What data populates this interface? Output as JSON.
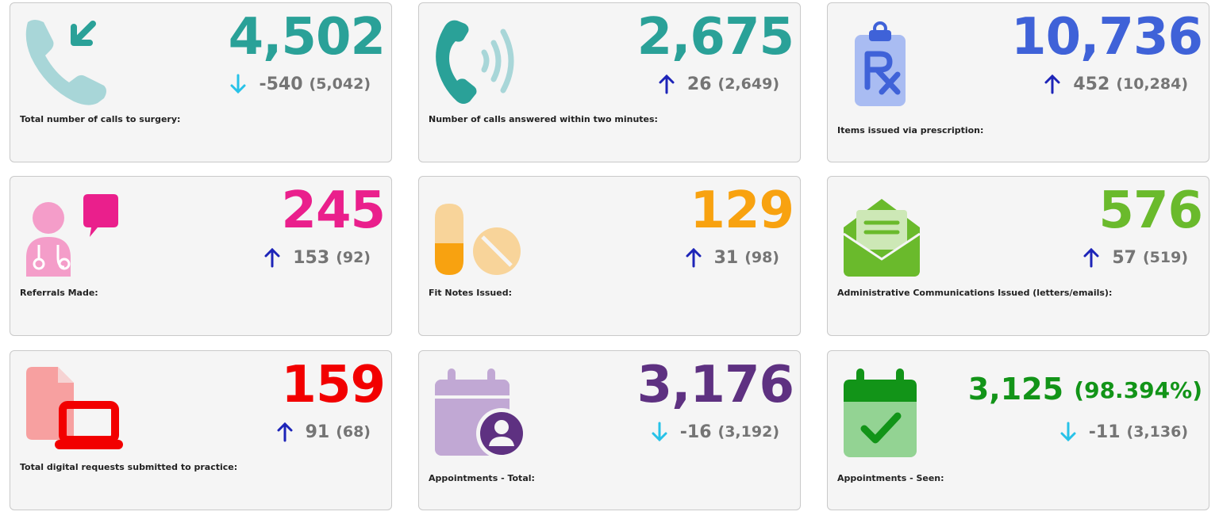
{
  "colors": {
    "teal": "#2aa198",
    "blue": "#3f62d8",
    "pink": "#ea1f8c",
    "orange": "#f8a210",
    "green": "#6aba2c",
    "red": "#f20000",
    "purple": "#5e3181",
    "dark_green": "#129418",
    "arrow_up": "#1d24b8",
    "arrow_down": "#27c2e8",
    "delta_grey": "#757575"
  },
  "cards": [
    {
      "icon": "incoming-call-icon",
      "value": "4,502",
      "direction": "down",
      "change": "-540",
      "previous": "(5,042)",
      "label": "Total number of calls to surgery:"
    },
    {
      "icon": "phone-ringing-icon",
      "value": "2,675",
      "direction": "up",
      "change": "26",
      "previous": "(2,649)",
      "label": "Number of calls answered within two minutes:"
    },
    {
      "icon": "prescription-clipboard-icon",
      "value": "10,736",
      "direction": "up",
      "change": "452",
      "previous": "(10,284)",
      "label": "Items issued via prescription:"
    },
    {
      "icon": "doctor-referral-icon",
      "value": "245",
      "direction": "up",
      "change": "153",
      "previous": "(92)",
      "label": "Referrals Made:"
    },
    {
      "icon": "pills-icon",
      "value": "129",
      "direction": "up",
      "change": "31",
      "previous": "(98)",
      "label": "Fit Notes Issued:"
    },
    {
      "icon": "open-envelope-icon",
      "value": "576",
      "direction": "up",
      "change": "57",
      "previous": "(519)",
      "label": "Administrative Communications Issued (letters/emails):"
    },
    {
      "icon": "digital-request-laptop-icon",
      "value": "159",
      "direction": "up",
      "change": "91",
      "previous": "(68)",
      "label": "Total digital requests submitted to practice:"
    },
    {
      "icon": "calendar-user-icon",
      "value": "3,176",
      "direction": "down",
      "change": "-16",
      "previous": "(3,192)",
      "label": "Appointments - Total:"
    },
    {
      "icon": "calendar-check-icon",
      "value": "3,125",
      "percent": "(98.394%)",
      "direction": "down",
      "change": "-11",
      "previous": "(3,136)",
      "label": "Appointments - Seen:"
    }
  ]
}
